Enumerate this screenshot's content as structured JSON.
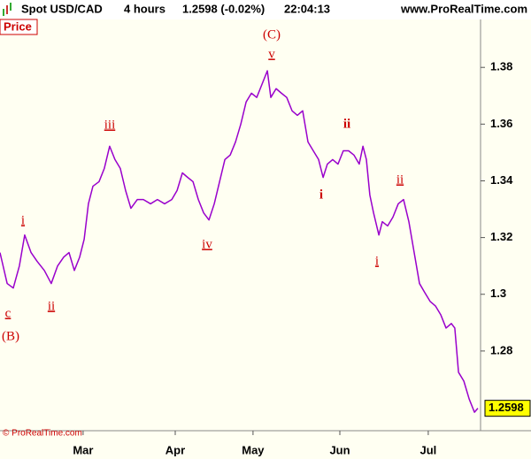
{
  "chart_data": {
    "type": "line",
    "title": "Spot USD/CAD",
    "timeframe": "4 hours",
    "quote": "1.2598 (-0.02%)",
    "time": "22:04:13",
    "source": "www.ProRealTime.com",
    "y_label": "Price",
    "copyright": "© ProRealTime.com",
    "color": "#9900cc",
    "x": [
      0,
      2.7,
      5,
      7.3,
      9.3,
      11.7,
      14,
      16.7,
      19.3,
      21.7,
      24,
      26,
      28,
      30,
      31.7,
      33.3,
      35,
      37.3,
      39.3,
      41.3,
      43.3,
      45.3,
      47.3,
      49.3,
      51.7,
      54,
      56.7,
      59.3,
      62,
      64.7,
      66.7,
      68.7,
      70.7,
      72.7,
      74.7,
      76.7,
      78.7,
      80.7,
      82.7,
      84.7,
      86.7,
      88.7,
      90.7,
      92.7,
      94.7,
      96.7,
      98.7,
      100.7,
      102,
      104,
      106,
      108,
      110,
      112,
      114,
      116,
      118,
      120,
      121.7,
      123.3,
      125.3,
      127.3,
      129.3,
      131.3,
      133.3,
      135.3,
      136.7,
      138,
      139.3,
      140.7,
      142.7,
      144,
      146,
      148,
      150,
      152,
      154,
      156,
      158,
      160,
      162,
      164,
      166,
      168,
      170,
      171.3,
      172.7,
      174.7,
      176.7,
      178.7,
      180
    ],
    "values": [
      1.3147,
      1.3038,
      1.3022,
      1.31,
      1.3209,
      1.3147,
      1.3116,
      1.3084,
      1.3038,
      1.31,
      1.3131,
      1.3147,
      1.3084,
      1.3131,
      1.3194,
      1.3319,
      1.3381,
      1.3397,
      1.3444,
      1.3522,
      1.3475,
      1.3444,
      1.3366,
      1.3303,
      1.3334,
      1.3334,
      1.3319,
      1.3334,
      1.3319,
      1.3334,
      1.3366,
      1.3428,
      1.3412,
      1.3397,
      1.3334,
      1.3287,
      1.3262,
      1.3319,
      1.3397,
      1.3475,
      1.3491,
      1.3537,
      1.36,
      1.3678,
      1.3709,
      1.3694,
      1.3741,
      1.3788,
      1.3694,
      1.3725,
      1.3709,
      1.3694,
      1.3647,
      1.3631,
      1.3647,
      1.3537,
      1.3506,
      1.3475,
      1.3412,
      1.3459,
      1.3475,
      1.3459,
      1.3506,
      1.3506,
      1.3491,
      1.3459,
      1.3522,
      1.3475,
      1.335,
      1.3287,
      1.3209,
      1.3256,
      1.3241,
      1.3272,
      1.3319,
      1.3334,
      1.3256,
      1.3147,
      1.3038,
      1.3006,
      1.2975,
      1.2959,
      1.2928,
      1.2881,
      1.2897,
      1.2881,
      1.2725,
      1.2694,
      1.2631,
      1.2584,
      1.2598
    ],
    "xlim": [
      0,
      181
    ],
    "xticks": [
      {
        "value": 31.3,
        "label": "Mar"
      },
      {
        "value": 66,
        "label": "Apr"
      },
      {
        "value": 95.3,
        "label": "May"
      },
      {
        "value": 128,
        "label": "Jun"
      },
      {
        "value": 161.3,
        "label": "Jul"
      }
    ],
    "ylim": [
      1.2519,
      1.3969
    ],
    "yticks": [
      1.28,
      1.3,
      1.32,
      1.34,
      1.36,
      1.38
    ],
    "annotations": [
      "c",
      "(B)",
      "i",
      "ii",
      "iii",
      "iv",
      "v",
      "(C)",
      "i",
      "ii",
      "i",
      "ii"
    ]
  }
}
